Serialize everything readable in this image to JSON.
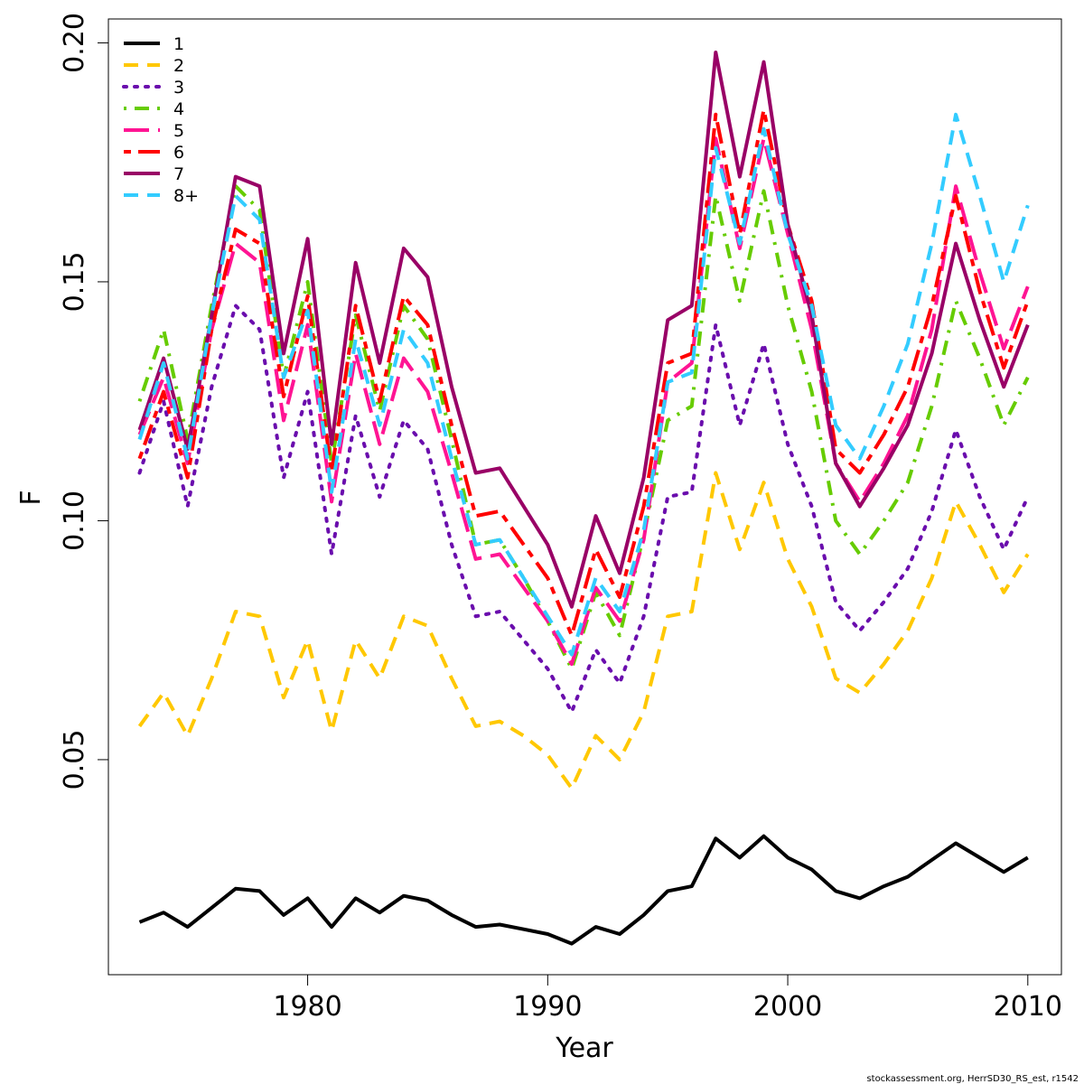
{
  "chart_data": {
    "type": "line",
    "xlabel": "Year",
    "ylabel": "F",
    "xlim": [
      1971.7,
      2011.4
    ],
    "ylim": [
      0.005,
      0.205
    ],
    "xticks": [
      "1980",
      "1990",
      "2000",
      "2010"
    ],
    "yticks": [
      "0.05",
      "0.10",
      "0.15",
      "0.20"
    ],
    "grid": false,
    "legend_position": "top-left",
    "x": [
      1973,
      1974,
      1975,
      1976,
      1977,
      1978,
      1979,
      1980,
      1981,
      1982,
      1983,
      1984,
      1985,
      1986,
      1987,
      1988,
      1989,
      1990,
      1991,
      1992,
      1993,
      1994,
      1995,
      1996,
      1997,
      1998,
      1999,
      2000,
      2001,
      2002,
      2003,
      2004,
      2005,
      2006,
      2007,
      2008,
      2009,
      2010
    ],
    "series": [
      {
        "name": "1",
        "color": "#000000",
        "dash": "solid",
        "values": [
          0.016,
          0.018,
          0.015,
          0.019,
          0.023,
          0.0225,
          0.0175,
          0.021,
          0.015,
          0.021,
          0.018,
          0.0215,
          0.0205,
          0.0175,
          0.015,
          0.0155,
          0.0145,
          0.0135,
          0.0115,
          0.015,
          0.0135,
          0.0175,
          0.0225,
          0.0235,
          0.0335,
          0.0295,
          0.034,
          0.0295,
          0.027,
          0.0225,
          0.021,
          0.0235,
          0.0255,
          0.029,
          0.0325,
          0.0295,
          0.0265,
          0.0295
        ]
      },
      {
        "name": "2",
        "color": "#FFC800",
        "dash": "dashed",
        "values": [
          0.057,
          0.064,
          0.055,
          0.067,
          0.081,
          0.08,
          0.063,
          0.075,
          0.056,
          0.075,
          0.067,
          0.08,
          0.078,
          0.067,
          0.057,
          0.058,
          0.055,
          0.051,
          0.044,
          0.055,
          0.05,
          0.06,
          0.08,
          0.081,
          0.11,
          0.094,
          0.108,
          0.092,
          0.082,
          0.067,
          0.064,
          0.07,
          0.077,
          0.088,
          0.104,
          0.095,
          0.085,
          0.093
        ]
      },
      {
        "name": "3",
        "color": "#6A0DAD",
        "dash": "dotted",
        "values": [
          0.11,
          0.125,
          0.103,
          0.128,
          0.145,
          0.14,
          0.109,
          0.127,
          0.093,
          0.122,
          0.105,
          0.121,
          0.115,
          0.095,
          0.08,
          0.081,
          0.075,
          0.069,
          0.06,
          0.073,
          0.066,
          0.08,
          0.105,
          0.106,
          0.141,
          0.12,
          0.137,
          0.116,
          0.103,
          0.083,
          0.077,
          0.083,
          0.09,
          0.102,
          0.119,
          0.105,
          0.094,
          0.105
        ]
      },
      {
        "name": "4",
        "color": "#66CC00",
        "dash": "dashdot",
        "values": [
          0.125,
          0.14,
          0.117,
          0.145,
          0.17,
          0.165,
          0.13,
          0.15,
          0.112,
          0.143,
          0.123,
          0.145,
          0.138,
          0.117,
          0.095,
          0.096,
          0.088,
          0.079,
          0.069,
          0.085,
          0.076,
          0.097,
          0.121,
          0.124,
          0.168,
          0.146,
          0.169,
          0.145,
          0.127,
          0.1,
          0.093,
          0.1,
          0.108,
          0.124,
          0.146,
          0.134,
          0.12,
          0.13
        ]
      },
      {
        "name": "5",
        "color": "#FF1493",
        "dash": "longdash",
        "values": [
          0.118,
          0.13,
          0.112,
          0.14,
          0.158,
          0.154,
          0.121,
          0.141,
          0.104,
          0.135,
          0.116,
          0.134,
          0.127,
          0.11,
          0.092,
          0.093,
          0.086,
          0.079,
          0.07,
          0.086,
          0.079,
          0.096,
          0.129,
          0.133,
          0.18,
          0.157,
          0.18,
          0.16,
          0.14,
          0.112,
          0.104,
          0.112,
          0.122,
          0.14,
          0.17,
          0.152,
          0.136,
          0.149
        ]
      },
      {
        "name": "6",
        "color": "#FF0000",
        "dash": "twodash",
        "values": [
          0.113,
          0.127,
          0.109,
          0.14,
          0.161,
          0.158,
          0.126,
          0.147,
          0.11,
          0.145,
          0.125,
          0.147,
          0.141,
          0.12,
          0.101,
          0.102,
          0.095,
          0.088,
          0.076,
          0.094,
          0.084,
          0.103,
          0.133,
          0.135,
          0.185,
          0.16,
          0.186,
          0.162,
          0.146,
          0.115,
          0.11,
          0.118,
          0.128,
          0.145,
          0.168,
          0.148,
          0.132,
          0.146
        ]
      },
      {
        "name": "7",
        "color": "#990066",
        "dash": "solid",
        "values": [
          0.119,
          0.134,
          0.115,
          0.143,
          0.172,
          0.17,
          0.135,
          0.159,
          0.116,
          0.154,
          0.133,
          0.157,
          0.151,
          0.128,
          0.11,
          0.111,
          0.103,
          0.095,
          0.082,
          0.101,
          0.089,
          0.109,
          0.142,
          0.145,
          0.198,
          0.172,
          0.196,
          0.162,
          0.143,
          0.112,
          0.103,
          0.111,
          0.12,
          0.135,
          0.158,
          0.142,
          0.128,
          0.141
        ]
      },
      {
        "name": "8+",
        "color": "#33CCFF",
        "dash": "dashed",
        "values": [
          0.117,
          0.133,
          0.113,
          0.143,
          0.168,
          0.163,
          0.13,
          0.144,
          0.106,
          0.138,
          0.12,
          0.14,
          0.133,
          0.113,
          0.095,
          0.096,
          0.088,
          0.08,
          0.072,
          0.088,
          0.081,
          0.098,
          0.129,
          0.131,
          0.178,
          0.158,
          0.182,
          0.16,
          0.145,
          0.12,
          0.113,
          0.124,
          0.137,
          0.158,
          0.185,
          0.168,
          0.15,
          0.166
        ]
      }
    ]
  },
  "credit": "stockassessment.org, HerrSD30_RS_est, r1542"
}
